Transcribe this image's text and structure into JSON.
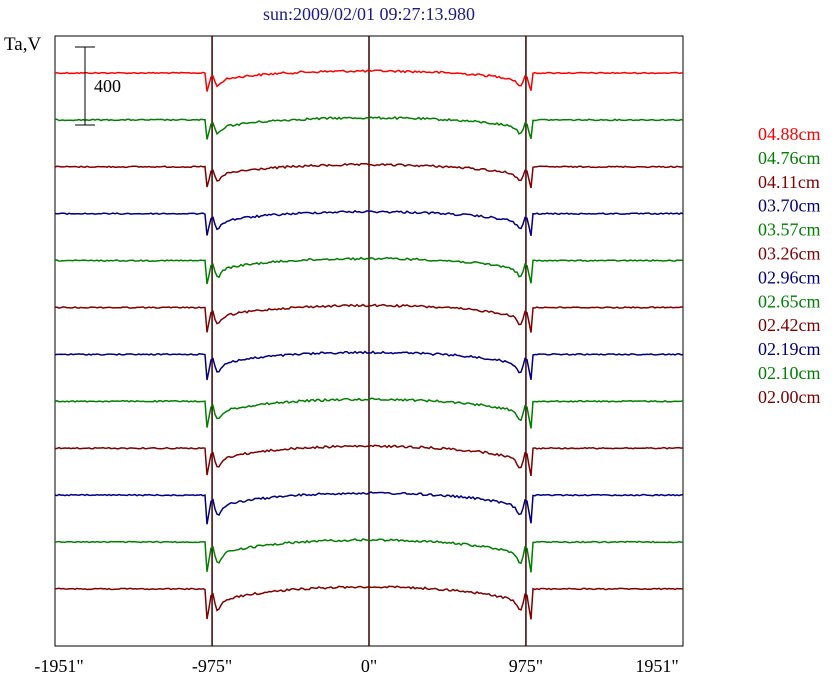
{
  "chart_data": {
    "type": "line",
    "title": "sun:2009/02/01 09:27:13.980",
    "ylabel": "Ta,V",
    "xlabel": "",
    "xlim": [
      -1951,
      1951
    ],
    "x_ticks": [
      {
        "value": -1951,
        "label": "-1951\""
      },
      {
        "value": -975,
        "label": "-975\""
      },
      {
        "value": 0,
        "label": "0\""
      },
      {
        "value": 975,
        "label": "975\""
      },
      {
        "value": 1951,
        "label": "1951\""
      }
    ],
    "vertical_lines": [
      -975,
      0,
      975
    ],
    "scale_bar": {
      "label": "400",
      "value": 400
    },
    "legend_position": "right",
    "series": [
      {
        "name": "04.88cm",
        "color": "#ff0000",
        "offset": 0
      },
      {
        "name": "04.76cm",
        "color": "#008000",
        "offset": 1
      },
      {
        "name": "04.11cm",
        "color": "#800000",
        "offset": 2
      },
      {
        "name": "03.70cm",
        "color": "#000080",
        "offset": 3
      },
      {
        "name": "03.57cm",
        "color": "#008000",
        "offset": 4
      },
      {
        "name": "03.26cm",
        "color": "#800000",
        "offset": 5
      },
      {
        "name": "02.96cm",
        "color": "#000080",
        "offset": 6
      },
      {
        "name": "02.65cm",
        "color": "#008000",
        "offset": 7
      },
      {
        "name": "02.42cm",
        "color": "#800000",
        "offset": 8
      },
      {
        "name": "02.19cm",
        "color": "#000080",
        "offset": 9
      },
      {
        "name": "02.10cm",
        "color": "#008000",
        "offset": 10
      },
      {
        "name": "02.00cm",
        "color": "#800000",
        "offset": 11
      }
    ]
  }
}
